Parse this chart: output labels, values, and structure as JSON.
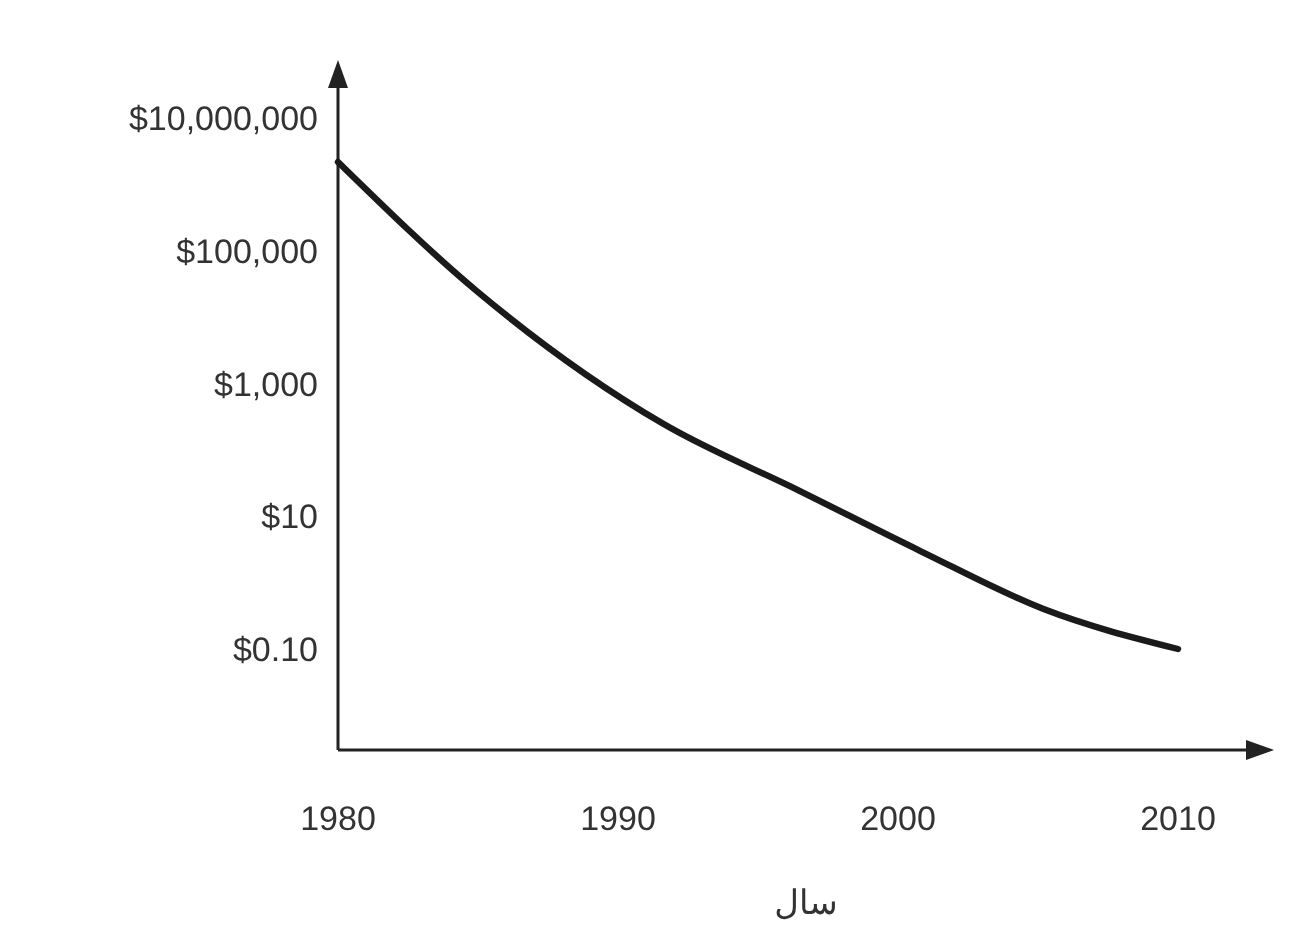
{
  "chart_data": {
    "type": "line",
    "xlabel": "سال",
    "log": "y",
    "grid": false,
    "marker": "none",
    "line_style": "solid",
    "x": [
      1980,
      1985,
      1991.6,
      1996.5,
      2000.8,
      2005.2,
      2010
    ],
    "series": [
      {
        "color": "#1a1a1a",
        "values": [
          2200000,
          24000,
          250,
          24,
          3,
          0.4,
          0.1
        ]
      }
    ],
    "xlim": [
      1980,
      2013
    ],
    "xticks": [
      1980,
      1990,
      2000,
      2010
    ],
    "ylim": [
      0.003,
      50000000
    ],
    "yticks": [
      {
        "value": 0.1,
        "label": "$0.10"
      },
      {
        "value": 10,
        "label": "$10"
      },
      {
        "value": 1000,
        "label": "$1,000"
      },
      {
        "value": 100000,
        "label": "$100,000"
      },
      {
        "value": 10000000,
        "label": "$10,000,000"
      }
    ]
  }
}
